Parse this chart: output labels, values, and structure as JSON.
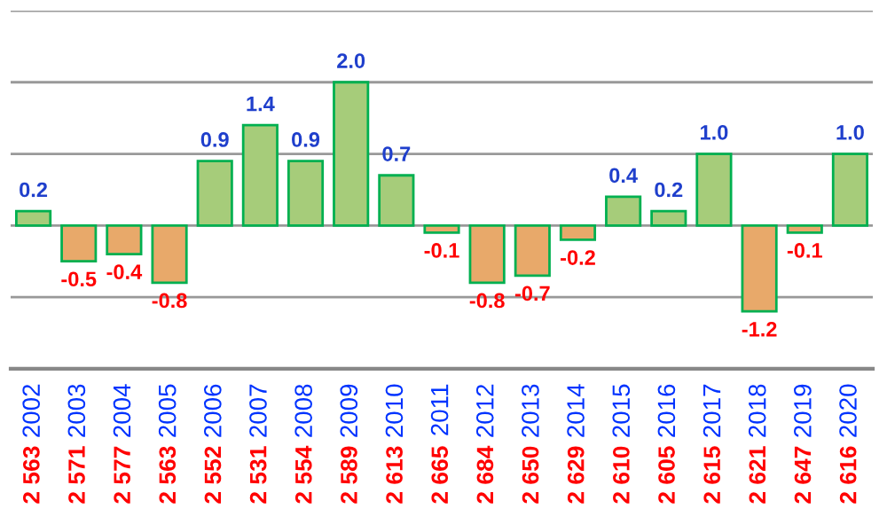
{
  "chart_data": {
    "type": "bar",
    "categories": [
      "2002",
      "2003",
      "2004",
      "2005",
      "2006",
      "2007",
      "2008",
      "2009",
      "2010",
      "2011",
      "2012",
      "2013",
      "2014",
      "2015",
      "2016",
      "2017",
      "2018",
      "2019",
      "2020"
    ],
    "values": [
      0.2,
      -0.5,
      -0.4,
      -0.8,
      0.9,
      1.4,
      0.9,
      2.0,
      0.7,
      -0.1,
      -0.8,
      -0.7,
      -0.2,
      0.4,
      0.2,
      1.0,
      -1.2,
      -0.1,
      1.0
    ],
    "colors": [
      "#a6cc7a",
      "#e8a96a",
      "#e8a96a",
      "#e8a96a",
      "#a6cc7a",
      "#a6cc7a",
      "#a6cc7a",
      "#a6cc7a",
      "#a6cc7a",
      "#e8a96a",
      "#e8a96a",
      "#e8a96a",
      "#e8a96a",
      "#a6cc7a",
      "#a6cc7a",
      "#a6cc7a",
      "#e8a96a",
      "#e8a96a",
      "#a6cc7a"
    ],
    "ylim": [
      -2,
      3
    ],
    "yticks": [
      {
        "value": -1,
        "label": null
      },
      {
        "value": 0,
        "label": null
      },
      {
        "value": 1,
        "label": null
      },
      {
        "value": 2,
        "label": null
      },
      {
        "value": 3,
        "label": null
      }
    ],
    "grid": "y",
    "tick_labels": "x",
    "value_labels": [
      "0.2",
      "-0.5",
      "-0.4",
      "-0.8",
      "0.9",
      "1.4",
      "0.9",
      "2.0",
      "0.7",
      "-0.1",
      "-0.8",
      "-0.7",
      "-0.2",
      "0.4",
      "0.2",
      "1.0",
      "-1.2",
      "-0.1",
      "1.0"
    ],
    "annotations": [
      "2 563",
      "2 571",
      "2 577",
      "2 563",
      "2 552",
      "2 531",
      "2 554",
      "2 589",
      "2 613",
      "2 665",
      "2 684",
      "2 650",
      "2 629",
      "2 610",
      "2 605",
      "2 615",
      "2 621",
      "2 647",
      "2 616"
    ]
  }
}
